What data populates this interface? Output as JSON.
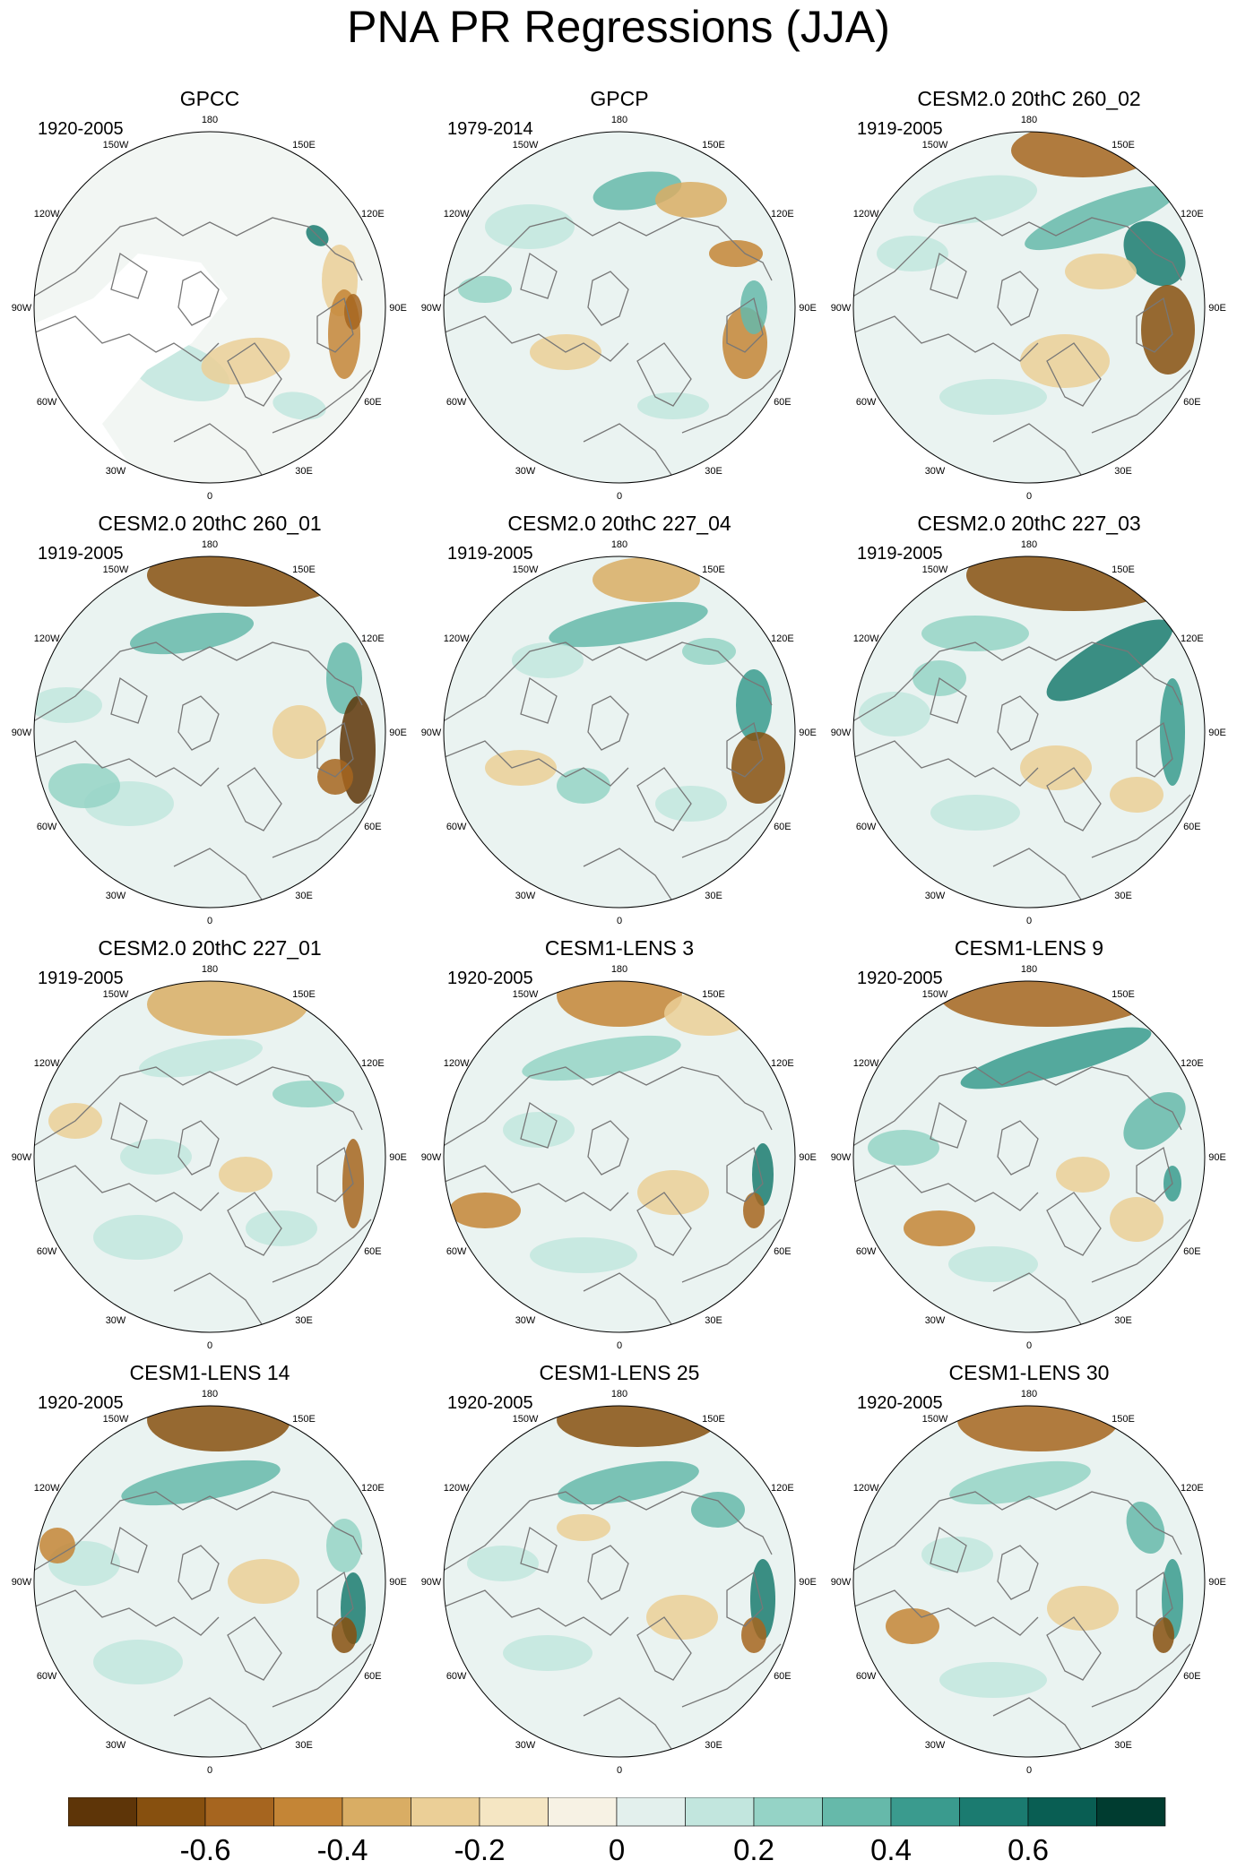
{
  "title": "PNA PR Regressions (JJA)",
  "longitude_labels": [
    "180",
    "150E",
    "120E",
    "90E",
    "60E",
    "30E",
    "0",
    "30W",
    "60W",
    "90W",
    "120W",
    "150W"
  ],
  "panels": [
    {
      "title": "GPCC",
      "period": "1920-2005"
    },
    {
      "title": "GPCP",
      "period": "1979-2014"
    },
    {
      "title": "CESM2.0 20thC 260_02",
      "period": "1919-2005"
    },
    {
      "title": "CESM2.0 20thC 260_01",
      "period": "1919-2005"
    },
    {
      "title": "CESM2.0 20thC 227_04",
      "period": "1919-2005"
    },
    {
      "title": "CESM2.0 20thC 227_03",
      "period": "1919-2005"
    },
    {
      "title": "CESM2.0 20thC 227_01",
      "period": "1919-2005"
    },
    {
      "title": "CESM1-LENS 3",
      "period": "1920-2005"
    },
    {
      "title": "CESM1-LENS 9",
      "period": "1920-2005"
    },
    {
      "title": "CESM1-LENS 14",
      "period": "1920-2005"
    },
    {
      "title": "CESM1-LENS 25",
      "period": "1920-2005"
    },
    {
      "title": "CESM1-LENS 30",
      "period": "1920-2005"
    }
  ],
  "colorbar": {
    "colors": [
      "#5e3508",
      "#87500f",
      "#a6651f",
      "#c48536",
      "#d9ad64",
      "#ebcf97",
      "#f5e6c3",
      "#f7f2e4",
      "#e3f0ed",
      "#c2e6de",
      "#95d3c6",
      "#66b9aa",
      "#3a9b8e",
      "#1b7b70",
      "#095e53",
      "#003c30"
    ],
    "labels": [
      "-0.6",
      "-0.4",
      "-0.2",
      "0",
      "0.2",
      "0.4",
      "0.6"
    ]
  },
  "colors": {
    "land_outline": "#777777",
    "missing": "#ffffff",
    "neutral": "#eaf3f1"
  }
}
